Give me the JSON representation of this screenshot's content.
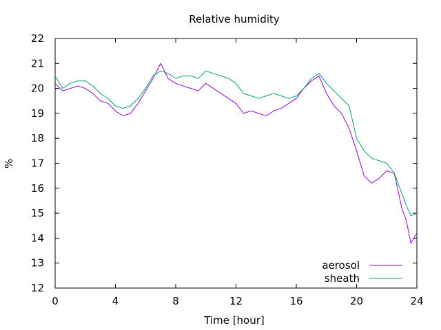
{
  "chart_data": {
    "type": "line",
    "title": "Relative humidity",
    "xlabel": "Time [hour]",
    "ylabel": "%",
    "xlim": [
      0,
      24
    ],
    "ylim": [
      12,
      22
    ],
    "xticks": [
      0,
      4,
      8,
      12,
      16,
      20,
      24
    ],
    "yticks": [
      12,
      13,
      14,
      15,
      16,
      17,
      18,
      19,
      20,
      21,
      22
    ],
    "grid": false,
    "legend_position": "bottom-right",
    "series": [
      {
        "name": "aerosol",
        "color": "#9400d3",
        "x": [
          0,
          0.5,
          1,
          1.5,
          2,
          2.5,
          3,
          3.5,
          4,
          4.5,
          5,
          5.5,
          6,
          6.5,
          7,
          7.5,
          8,
          8.5,
          9,
          9.5,
          10,
          10.5,
          11,
          11.5,
          12,
          12.5,
          13,
          13.5,
          14,
          14.5,
          15,
          15.5,
          16,
          16.5,
          17,
          17.5,
          18,
          18.5,
          19,
          19.5,
          20,
          20.5,
          21,
          21.5,
          22,
          22.5,
          23,
          23.3,
          23.6,
          24
        ],
        "y": [
          20.2,
          19.9,
          20.0,
          20.1,
          20.0,
          19.8,
          19.5,
          19.4,
          19.1,
          18.9,
          19.0,
          19.4,
          19.9,
          20.4,
          21.0,
          20.4,
          20.2,
          20.1,
          20.0,
          19.9,
          20.2,
          20.0,
          19.8,
          19.6,
          19.4,
          19.0,
          19.1,
          19.0,
          18.9,
          19.1,
          19.2,
          19.4,
          19.6,
          20.0,
          20.3,
          20.5,
          19.8,
          19.3,
          19.0,
          18.4,
          17.5,
          16.5,
          16.2,
          16.4,
          16.7,
          16.6,
          15.2,
          14.7,
          13.8,
          14.2
        ]
      },
      {
        "name": "sheath",
        "color": "#009e73",
        "x": [
          0,
          0.5,
          1,
          1.5,
          2,
          2.5,
          3,
          3.5,
          4,
          4.5,
          5,
          5.5,
          6,
          6.5,
          7,
          7.5,
          8,
          8.5,
          9,
          9.5,
          10,
          10.5,
          11,
          11.5,
          12,
          12.5,
          13,
          13.5,
          14,
          14.5,
          15,
          15.5,
          16,
          16.5,
          17,
          17.5,
          18,
          18.5,
          19,
          19.5,
          20,
          20.5,
          21,
          21.5,
          22,
          22.5,
          23,
          23.3,
          23.6,
          24
        ],
        "y": [
          20.5,
          20.0,
          20.2,
          20.3,
          20.3,
          20.1,
          19.8,
          19.6,
          19.3,
          19.2,
          19.3,
          19.6,
          20.0,
          20.5,
          20.7,
          20.6,
          20.4,
          20.5,
          20.5,
          20.4,
          20.7,
          20.6,
          20.5,
          20.4,
          20.2,
          19.8,
          19.7,
          19.6,
          19.7,
          19.8,
          19.7,
          19.6,
          19.7,
          20.0,
          20.4,
          20.6,
          20.2,
          19.9,
          19.6,
          19.3,
          18.0,
          17.5,
          17.2,
          17.1,
          17.0,
          16.6,
          15.8,
          15.3,
          14.9,
          15.0
        ]
      }
    ]
  }
}
